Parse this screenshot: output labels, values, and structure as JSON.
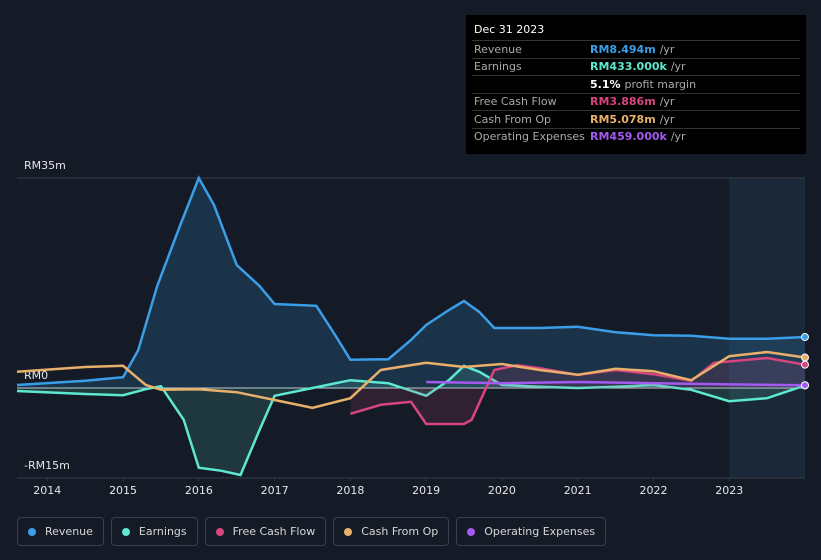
{
  "chart_data": {
    "type": "line",
    "xlim": [
      2013.6,
      2024.0
    ],
    "xticks": [
      2014,
      2015,
      2016,
      2017,
      2018,
      2019,
      2020,
      2021,
      2022,
      2023
    ],
    "ylim": [
      -15,
      35
    ],
    "yticks": [
      {
        "value": 35,
        "label": "RM35m"
      },
      {
        "value": 0,
        "label": "RM0"
      },
      {
        "value": -15,
        "label": "-RM15m"
      }
    ],
    "grid": true,
    "highlight_from": 2023,
    "series": [
      {
        "name": "Revenue",
        "color": "#3a9ee8",
        "fill": true,
        "x": [
          2013.6,
          2014.5,
          2015.0,
          2015.2,
          2015.45,
          2015.75,
          2016.0,
          2016.2,
          2016.5,
          2016.8,
          2017.0,
          2017.55,
          2017.8,
          2018.0,
          2018.5,
          2018.8,
          2019.0,
          2019.3,
          2019.5,
          2019.7,
          2019.9,
          2020.5,
          2021.0,
          2021.5,
          2022.0,
          2022.5,
          2023.0,
          2023.5,
          2024.0
        ],
        "values": [
          0.5,
          1.2,
          1.8,
          6.3,
          17,
          27,
          35,
          30.5,
          20.5,
          17,
          14,
          13.7,
          8.8,
          4.7,
          4.8,
          8,
          10.5,
          13,
          14.5,
          12.7,
          10,
          10,
          10.2,
          9.3,
          8.8,
          8.7,
          8.2,
          8.2,
          8.494
        ]
      },
      {
        "name": "Earnings",
        "color": "#5ee8d0",
        "fill": true,
        "x": [
          2013.6,
          2014.5,
          2015.0,
          2015.3,
          2015.5,
          2015.8,
          2016.0,
          2016.3,
          2016.55,
          2016.8,
          2017.0,
          2017.5,
          2018.0,
          2018.5,
          2019.0,
          2019.3,
          2019.5,
          2019.7,
          2020.0,
          2020.5,
          2021.0,
          2021.5,
          2022.0,
          2022.5,
          2023.0,
          2023.5,
          2024.0
        ],
        "values": [
          -0.5,
          -1,
          -1.2,
          -0.2,
          0.3,
          -5.3,
          -13.3,
          -13.8,
          -14.5,
          -7,
          -1.3,
          0,
          1.3,
          0.8,
          -1.3,
          1.3,
          3.7,
          2.7,
          0.5,
          0.2,
          0,
          0.2,
          0.5,
          -0.3,
          -2.2,
          -1.7,
          0.433
        ]
      },
      {
        "name": "Free Cash Flow",
        "color": "#d8457f",
        "fill": true,
        "x": [
          2018.0,
          2018.4,
          2018.8,
          2019.0,
          2019.5,
          2019.6,
          2019.9,
          2020.2,
          2020.5,
          2021.0,
          2021.5,
          2022.0,
          2022.5,
          2022.8,
          2023.5,
          2024.0
        ],
        "values": [
          -4.3,
          -2.8,
          -2.3,
          -6,
          -6,
          -5.3,
          3,
          3.8,
          3.3,
          2.2,
          3,
          2.3,
          1.2,
          4.2,
          5,
          3.886
        ]
      },
      {
        "name": "Cash From Op",
        "color": "#e8b06a",
        "fill": false,
        "x": [
          2013.6,
          2014.5,
          2015.0,
          2015.3,
          2015.5,
          2016.0,
          2016.5,
          2017.0,
          2017.5,
          2018.0,
          2018.4,
          2019.0,
          2019.5,
          2020.0,
          2020.5,
          2021.0,
          2021.5,
          2022.0,
          2022.5,
          2023.0,
          2023.5,
          2024.0
        ],
        "values": [
          2.7,
          3.5,
          3.7,
          0.5,
          -0.3,
          -0.2,
          -0.7,
          -2,
          -3.3,
          -1.7,
          3,
          4.2,
          3.5,
          4,
          3,
          2.2,
          3.2,
          2.8,
          1.3,
          5.3,
          6,
          5.078
        ]
      },
      {
        "name": "Operating Expenses",
        "color": "#a45af0",
        "fill": false,
        "x": [
          2019.0,
          2020.0,
          2021.0,
          2022.0,
          2023.0,
          2024.0
        ],
        "values": [
          1,
          0.8,
          1,
          0.8,
          0.6,
          0.459
        ]
      }
    ]
  },
  "tooltip": {
    "date": "Dec 31 2023",
    "rows": [
      {
        "label": "Revenue",
        "value": "RM8.494m",
        "suffix": "/yr",
        "color": "#3a9ee8"
      },
      {
        "label": "Earnings",
        "value": "RM433.000k",
        "suffix": "/yr",
        "color": "#5ee8d0"
      },
      {
        "label": null,
        "value": "5.1%",
        "suffix": "profit margin",
        "color": "#ffffff"
      },
      {
        "label": "Free Cash Flow",
        "value": "RM3.886m",
        "suffix": "/yr",
        "color": "#d8457f"
      },
      {
        "label": "Cash From Op",
        "value": "RM5.078m",
        "suffix": "/yr",
        "color": "#e8b06a"
      },
      {
        "label": "Operating Expenses",
        "value": "RM459.000k",
        "suffix": "/yr",
        "color": "#a45af0"
      }
    ]
  }
}
